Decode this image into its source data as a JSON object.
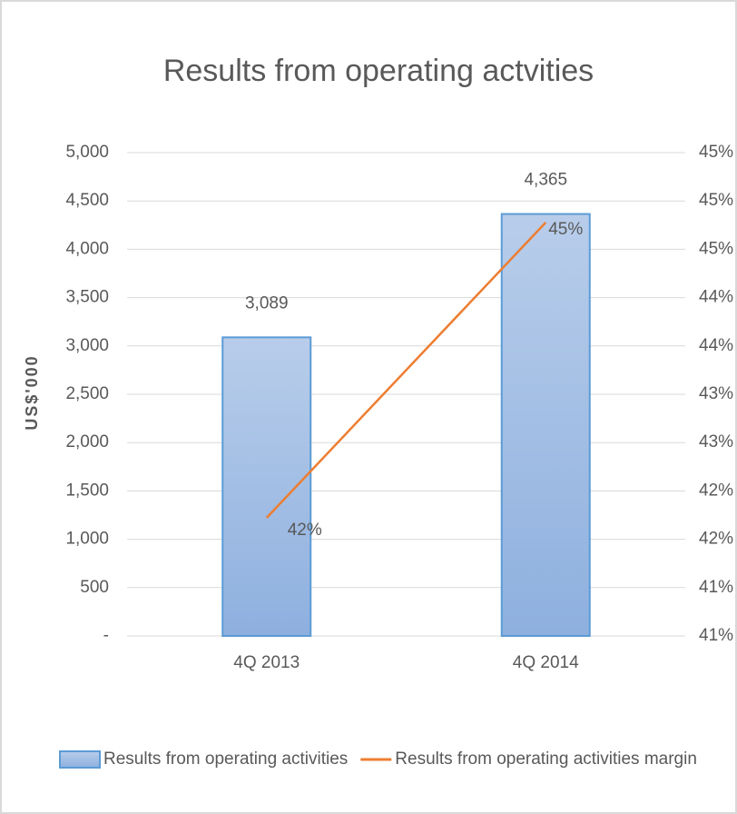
{
  "chart_data": {
    "type": "bar",
    "title": "Results from operating actvities",
    "y_label": "US$'000",
    "categories": [
      "4Q 2013",
      "4Q 2014"
    ],
    "series": [
      {
        "name": "Results from operating activities",
        "type": "bar",
        "color": "#9dc3e6",
        "values": [
          3089,
          4365
        ],
        "value_labels": [
          "3,089",
          "4,365"
        ]
      },
      {
        "name": "Results from operating activities margin",
        "type": "line",
        "axis": "y2",
        "color": "#ed7d31",
        "values": [
          42,
          44.75
        ],
        "value_labels": [
          "42%",
          "45%"
        ]
      }
    ],
    "ylim": [
      0,
      5000
    ],
    "yticks": [
      {
        "value": 0,
        "label": "-"
      },
      500,
      {
        "value": 1000,
        "label": "1,000"
      },
      {
        "value": 1500,
        "label": "1,500"
      },
      {
        "value": 2000,
        "label": "2,000"
      },
      {
        "value": 2500,
        "label": "2,500"
      },
      {
        "value": 3000,
        "label": "3,000"
      },
      {
        "value": 3500,
        "label": "3,500"
      },
      {
        "value": 4000,
        "label": "4,000"
      },
      {
        "value": 4500,
        "label": "4,500"
      },
      {
        "value": 5000,
        "label": "5,000"
      }
    ],
    "y2lim": [
      40.9,
      45.4
    ],
    "y2ticks": [
      {
        "value": 40.9,
        "label": "41%"
      },
      {
        "value": 41.35,
        "label": "41%"
      },
      {
        "value": 41.8,
        "label": "42%"
      },
      {
        "value": 42.25,
        "label": "42%"
      },
      {
        "value": 42.7,
        "label": "43%"
      },
      {
        "value": 43.15,
        "label": "43%"
      },
      {
        "value": 43.6,
        "label": "44%"
      },
      {
        "value": 44.05,
        "label": "44%"
      },
      {
        "value": 44.5,
        "label": "45%"
      },
      {
        "value": 44.95,
        "label": "45%"
      },
      {
        "value": 45.4,
        "label": "45%"
      }
    ],
    "grid": true,
    "legend": "bottom"
  }
}
